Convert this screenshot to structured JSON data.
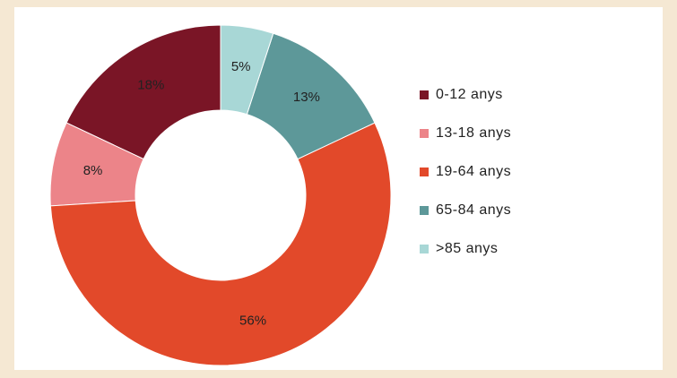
{
  "chart_data": {
    "type": "pie",
    "variant": "donut",
    "title": "",
    "categories": [
      "0-12 anys",
      "13-18 anys",
      "19-64 anys",
      "65-84 anys",
      ">85 anys"
    ],
    "values": [
      18,
      8,
      56,
      13,
      5
    ],
    "value_labels": [
      "18%",
      "8%",
      "56%",
      "13%",
      "5%"
    ],
    "colors": [
      "#7a1526",
      "#ec8489",
      "#e2492a",
      "#5d9899",
      "#a8d7d6"
    ],
    "legend_position": "right"
  }
}
